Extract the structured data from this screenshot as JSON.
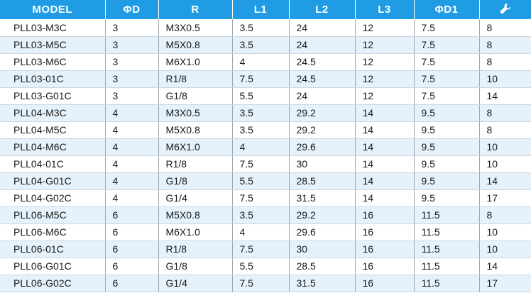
{
  "colors": {
    "header_bg": "#1f9ce4",
    "header_text": "#ffffff",
    "alt_row_bg": "#e6f2fb"
  },
  "table": {
    "headers": {
      "model": "MODEL",
      "od": "ΦD",
      "r": "R",
      "l1": "L1",
      "l2": "L2",
      "l3": "L3",
      "od1": "ΦD1",
      "wrench": {
        "icon": "wrench-icon"
      }
    },
    "rows": [
      [
        "PLL03-M3C",
        "3",
        "M3X0.5",
        "3.5",
        "24",
        "12",
        "7.5",
        "8"
      ],
      [
        "PLL03-M5C",
        "3",
        "M5X0.8",
        "3.5",
        "24",
        "12",
        "7.5",
        "8"
      ],
      [
        "PLL03-M6C",
        "3",
        "M6X1.0",
        "4",
        "24.5",
        "12",
        "7.5",
        "8"
      ],
      [
        "PLL03-01C",
        "3",
        "R1/8",
        "7.5",
        "24.5",
        "12",
        "7.5",
        "10"
      ],
      [
        "PLL03-G01C",
        "3",
        "G1/8",
        "5.5",
        "24",
        "12",
        "7.5",
        "14"
      ],
      [
        "PLL04-M3C",
        "4",
        "M3X0.5",
        "3.5",
        "29.2",
        "14",
        "9.5",
        "8"
      ],
      [
        "PLL04-M5C",
        "4",
        "M5X0.8",
        "3.5",
        "29.2",
        "14",
        "9.5",
        "8"
      ],
      [
        "PLL04-M6C",
        "4",
        "M6X1.0",
        "4",
        "29.6",
        "14",
        "9.5",
        "10"
      ],
      [
        "PLL04-01C",
        "4",
        "R1/8",
        "7.5",
        "30",
        "14",
        "9.5",
        "10"
      ],
      [
        "PLL04-G01C",
        "4",
        "G1/8",
        "5.5",
        "28.5",
        "14",
        "9.5",
        "14"
      ],
      [
        "PLL04-G02C",
        "4",
        "G1/4",
        "7.5",
        "31.5",
        "14",
        "9.5",
        "17"
      ],
      [
        "PLL06-M5C",
        "6",
        "M5X0.8",
        "3.5",
        "29.2",
        "16",
        "11.5",
        "8"
      ],
      [
        "PLL06-M6C",
        "6",
        "M6X1.0",
        "4",
        "29.6",
        "16",
        "11.5",
        "10"
      ],
      [
        "PLL06-01C",
        "6",
        "R1/8",
        "7.5",
        "30",
        "16",
        "11.5",
        "10"
      ],
      [
        "PLL06-G01C",
        "6",
        "G1/8",
        "5.5",
        "28.5",
        "16",
        "11.5",
        "14"
      ],
      [
        "PLL06-G02C",
        "6",
        "G1/4",
        "7.5",
        "31.5",
        "16",
        "11.5",
        "17"
      ]
    ]
  }
}
